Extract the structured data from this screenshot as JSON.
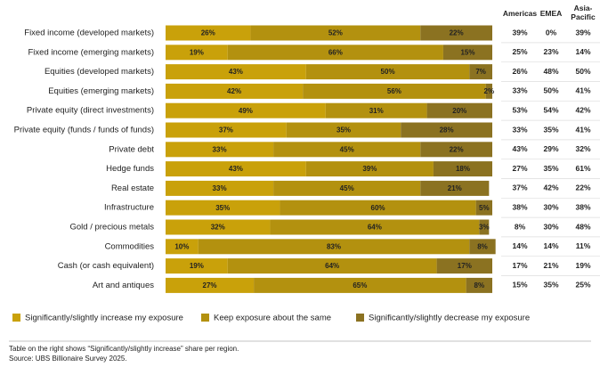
{
  "chart_data": {
    "type": "bar",
    "orientation": "horizontal",
    "stacked": true,
    "categories": [
      "Fixed income (developed markets)",
      "Fixed income (emerging markets)",
      "Equities (developed markets)",
      "Equities (emerging markets)",
      "Private equity (direct investments)",
      "Private equity (funds / funds of funds)",
      "Private debt",
      "Hedge funds",
      "Real estate",
      "Infrastructure",
      "Gold / precious metals",
      "Commodities",
      "Cash (or cash equivalent)",
      "Art and antiques"
    ],
    "series": [
      {
        "name": "Significantly/slightly increase my exposure",
        "color": "#c9a10a",
        "values": [
          26,
          19,
          43,
          42,
          49,
          37,
          33,
          43,
          33,
          35,
          32,
          10,
          19,
          27
        ],
        "value_labels": [
          "26%",
          "19%",
          "43%",
          "42%",
          "49%",
          "37%",
          "33%",
          "43%",
          "33%",
          "35%",
          "32%",
          "10%",
          "19%",
          "27%"
        ]
      },
      {
        "name": "Keep exposure about the same",
        "color": "#b3910f",
        "values": [
          52,
          66,
          50,
          56,
          31,
          35,
          45,
          39,
          45,
          60,
          64,
          83,
          64,
          65
        ],
        "value_labels": [
          "52%",
          "66%",
          "50%",
          "56%",
          "31%",
          "35%",
          "45%",
          "39%",
          "45%",
          "60%",
          "64%",
          "83%",
          "64%",
          "65%"
        ]
      },
      {
        "name": "Significantly/slightly decrease my exposure",
        "color": "#8b7221",
        "values": [
          22,
          15,
          7,
          2,
          20,
          28,
          22,
          18,
          21,
          5,
          3,
          8,
          17,
          8
        ],
        "value_labels": [
          "22%",
          "15%",
          "7%",
          "2%",
          "20%",
          "28%",
          "22%",
          "18%",
          "21%",
          "5%",
          "3%",
          "8%",
          "17%",
          "8%"
        ]
      }
    ],
    "xlim": [
      0,
      100
    ],
    "table": {
      "headers": [
        "Americas",
        "EMEA",
        "Asia-Pacific"
      ],
      "rows": [
        [
          "39%",
          "0%",
          "39%"
        ],
        [
          "25%",
          "23%",
          "14%"
        ],
        [
          "26%",
          "48%",
          "50%"
        ],
        [
          "33%",
          "50%",
          "41%"
        ],
        [
          "53%",
          "54%",
          "42%"
        ],
        [
          "33%",
          "35%",
          "41%"
        ],
        [
          "43%",
          "29%",
          "32%"
        ],
        [
          "27%",
          "35%",
          "61%"
        ],
        [
          "37%",
          "42%",
          "22%"
        ],
        [
          "38%",
          "30%",
          "38%"
        ],
        [
          "8%",
          "30%",
          "48%"
        ],
        [
          "14%",
          "14%",
          "11%"
        ],
        [
          "17%",
          "21%",
          "19%"
        ],
        [
          "15%",
          "35%",
          "25%"
        ]
      ]
    },
    "notes": [
      "Table on the right shows “Significantly/slightly increase” share per region.",
      "Source: UBS Billionaire Survey 2025."
    ]
  }
}
